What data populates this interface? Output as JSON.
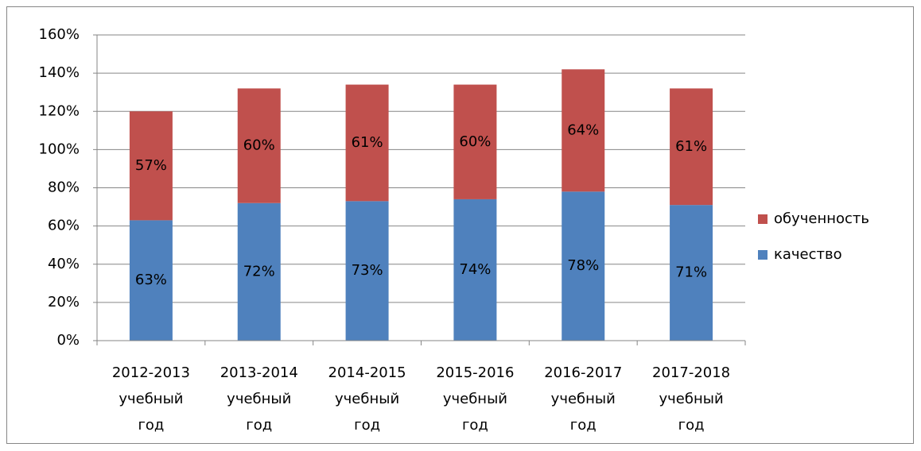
{
  "chart_data": {
    "type": "stacked_bar",
    "categories": [
      [
        "2012-2013",
        "учебный",
        "год"
      ],
      [
        "2013-2014",
        "учебный",
        "год"
      ],
      [
        "2014-2015",
        "учебный",
        "год"
      ],
      [
        "2015-2016",
        "учебный",
        "год"
      ],
      [
        "2016-2017",
        "учебный",
        "год"
      ],
      [
        "2017-2018",
        "учебный",
        "год"
      ]
    ],
    "series": [
      {
        "name": "качество",
        "color": "#4f81bd",
        "values": [
          63,
          72,
          73,
          74,
          78,
          71
        ],
        "value_labels": [
          "63%",
          "72%",
          "73%",
          "74%",
          "78%",
          "71%"
        ]
      },
      {
        "name": "обученность",
        "color": "#c0504d",
        "values": [
          57,
          60,
          61,
          60,
          64,
          61
        ],
        "value_labels": [
          "57%",
          "60%",
          "61%",
          "60%",
          "64%",
          "61%"
        ]
      }
    ],
    "ylim": [
      0,
      160
    ],
    "yticks": [
      {
        "value": 0,
        "label": "0%"
      },
      {
        "value": 20,
        "label": "20%"
      },
      {
        "value": 40,
        "label": "40%"
      },
      {
        "value": 60,
        "label": "60%"
      },
      {
        "value": 80,
        "label": "80%"
      },
      {
        "value": 100,
        "label": "100%"
      },
      {
        "value": 120,
        "label": "120%"
      },
      {
        "value": 140,
        "label": "140%"
      },
      {
        "value": 160,
        "label": "160%"
      }
    ],
    "grid": true,
    "legend": "right"
  }
}
